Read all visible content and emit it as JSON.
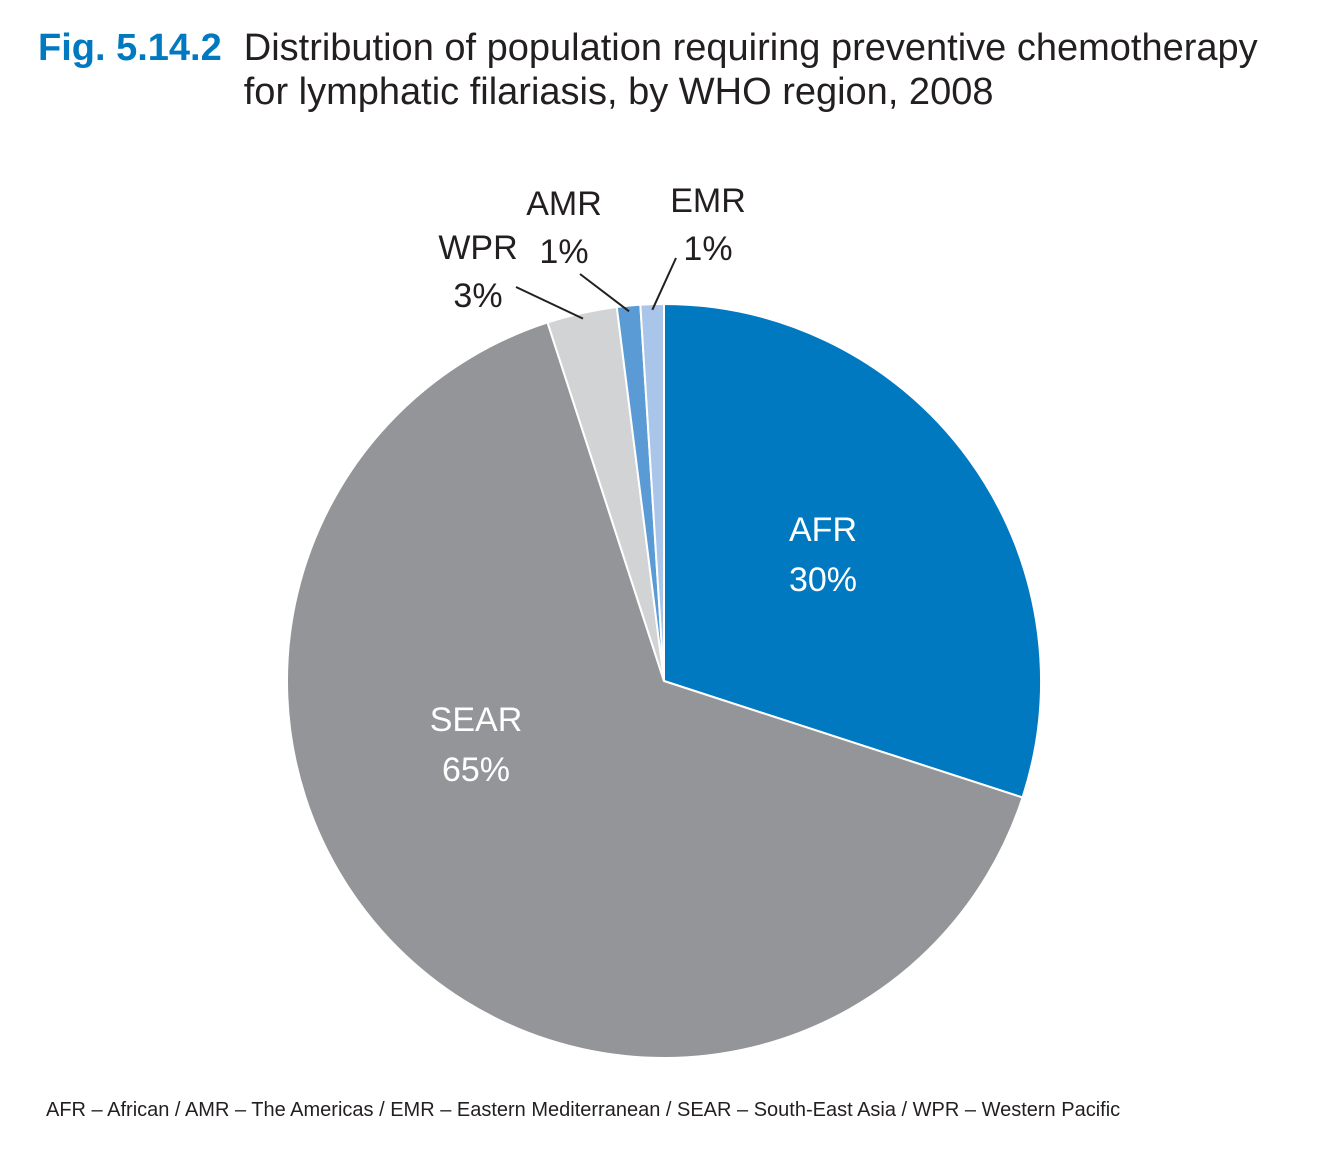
{
  "figure": {
    "number": "Fig. 5.14.2",
    "title": "Distribution of population requiring preventive chemotherapy for lymphatic filariasis, by WHO region, 2008"
  },
  "chart_data": {
    "type": "pie",
    "title": "Distribution of population requiring preventive chemotherapy for lymphatic filariasis, by WHO region, 2008",
    "slices": [
      {
        "label": "AFR",
        "value": 30,
        "value_label": "30%",
        "color": "#0079c1",
        "label_color": "#ffffff"
      },
      {
        "label": "SEAR",
        "value": 65,
        "value_label": "65%",
        "color": "#939598",
        "label_color": "#ffffff"
      },
      {
        "label": "WPR",
        "value": 3,
        "value_label": "3%",
        "color": "#d1d3d4",
        "label_color": "#231f20"
      },
      {
        "label": "AMR",
        "value": 1,
        "value_label": "1%",
        "color": "#5b9bd5",
        "label_color": "#231f20"
      },
      {
        "label": "EMR",
        "value": 1,
        "value_label": "1%",
        "color": "#a9c5ea",
        "label_color": "#231f20"
      }
    ]
  },
  "footnote": "AFR – African / AMR – The Americas / EMR – Eastern Mediterranean / SEAR – South-East Asia / WPR – Western Pacific"
}
